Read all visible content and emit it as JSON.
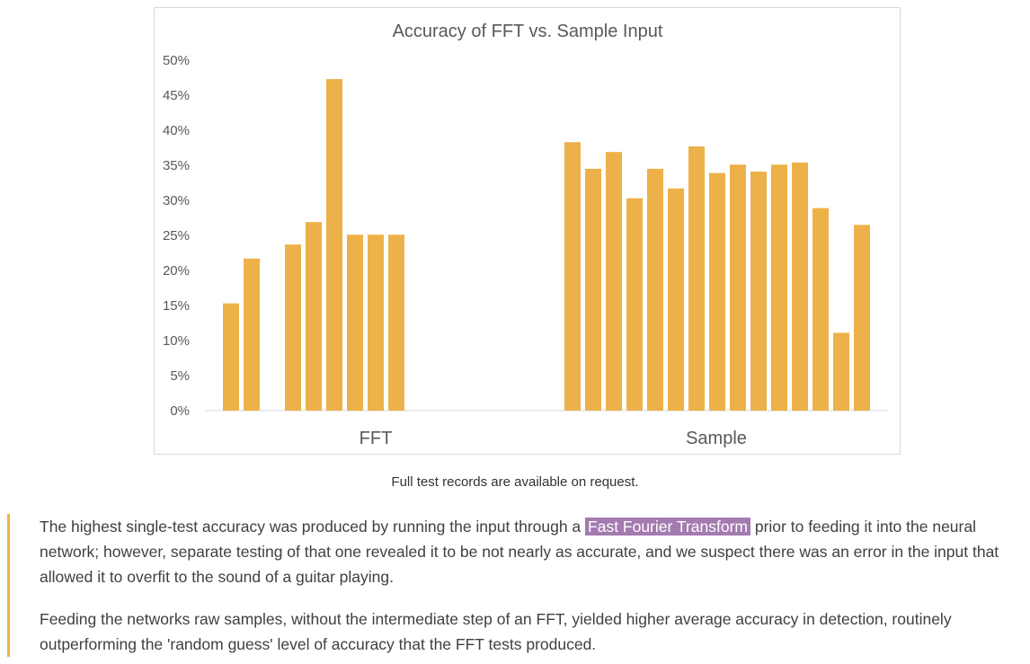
{
  "chart_data": {
    "type": "bar",
    "title": "Accuracy of FFT vs. Sample Input",
    "xlabel": "",
    "ylabel": "",
    "ylim": [
      0,
      50
    ],
    "yticks": [
      "0%",
      "5%",
      "10%",
      "15%",
      "20%",
      "25%",
      "30%",
      "35%",
      "40%",
      "45%",
      "50%"
    ],
    "grid": false,
    "legend": "none",
    "bar_color": "#edb149",
    "categories": [
      "FFT",
      "Sample"
    ],
    "groups": [
      {
        "category": "FFT",
        "values": [
          15.3,
          21.7,
          null,
          23.7,
          26.9,
          47.3,
          25.1,
          25.1,
          25.1
        ]
      },
      {
        "category": "Sample",
        "values": [
          38.3,
          34.5,
          36.9,
          30.3,
          34.5,
          31.7,
          37.7,
          33.9,
          35.1,
          34.1,
          35.1,
          35.4,
          28.9,
          11.1,
          26.5
        ]
      }
    ]
  },
  "caption": "Full test records are available on request.",
  "article": {
    "p1_before": "The highest single-test accuracy was produced by running the input through a ",
    "p1_highlight": "Fast Fourier Transform",
    "p1_after": " prior to feeding it into the neural network; however, separate testing of that one revealed it to be not nearly as accurate, and we suspect there was an error in the input that allowed it to overfit to the sound of a guitar playing.",
    "p2": "Feeding the networks raw samples, without the intermediate step of an FFT, yielded higher average accuracy in detection, routinely outperforming the 'random guess' level of accuracy that the FFT tests produced."
  },
  "colors": {
    "accent_bar": "#f0b24a",
    "highlight": "#a47bb0"
  }
}
